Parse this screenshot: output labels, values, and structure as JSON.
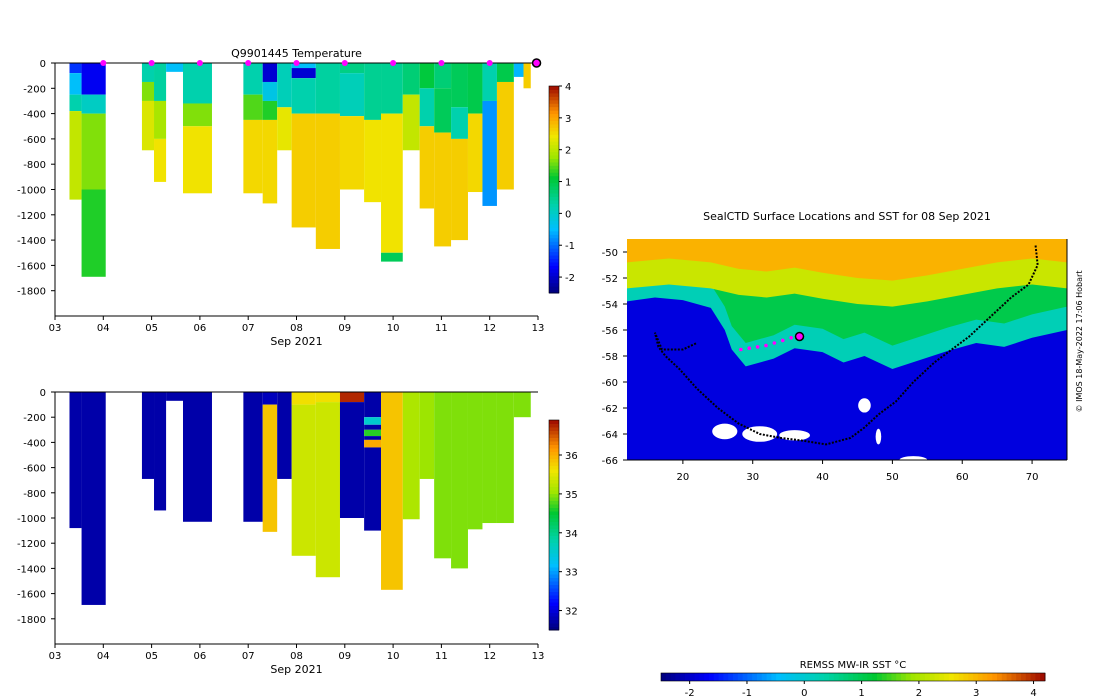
{
  "colors": {
    "axis": "#000000",
    "marker": "#ff00ff",
    "land": "#ffffff",
    "track": "#000000"
  },
  "chart_data": [
    {
      "id": "temperature",
      "type": "heatmap",
      "title": "Q9901445  Temperature",
      "xlabel": "Sep 2021",
      "ylabel": "",
      "xlim": [
        3,
        13
      ],
      "ylim": [
        -2000,
        0
      ],
      "xticks": [
        "03",
        "04",
        "05",
        "06",
        "07",
        "08",
        "09",
        "10",
        "11",
        "12",
        "13"
      ],
      "yticks": [
        "0",
        "-200",
        "-400",
        "-600",
        "-800",
        "-1000",
        "-1200",
        "-1400",
        "-1600",
        "-1800"
      ],
      "colorbar": {
        "range": [
          -2.5,
          4
        ],
        "ticks": [
          "4",
          "3",
          "2",
          "1",
          "0",
          "-1",
          "-2"
        ]
      },
      "markers_x": [
        4.0,
        5.0,
        6.0,
        7.0,
        8.0,
        9.0,
        10.0,
        11.0,
        12.0
      ],
      "profiles": [
        {
          "x0": 3.3,
          "x1": 3.55,
          "bottom": 1080,
          "layers": [
            [
              0,
              80,
              -1.4
            ],
            [
              80,
              250,
              -0.5
            ],
            [
              250,
              380,
              0.2
            ],
            [
              380,
              1080,
              2.0
            ]
          ]
        },
        {
          "x0": 3.55,
          "x1": 4.05,
          "bottom": 1690,
          "layers": [
            [
              0,
              250,
              -1.8
            ],
            [
              250,
              400,
              0.0
            ],
            [
              400,
              1000,
              1.6
            ],
            [
              1000,
              1690,
              1.2
            ]
          ]
        },
        {
          "x0": 4.8,
          "x1": 5.05,
          "bottom": 690,
          "layers": [
            [
              0,
              150,
              0.2
            ],
            [
              150,
              300,
              1.6
            ],
            [
              300,
              690,
              2.2
            ]
          ]
        },
        {
          "x0": 5.05,
          "x1": 5.3,
          "bottom": 940,
          "layers": [
            [
              0,
              300,
              0.3
            ],
            [
              300,
              600,
              1.8
            ],
            [
              600,
              940,
              2.4
            ]
          ]
        },
        {
          "x0": 5.3,
          "x1": 5.65,
          "bottom": 70,
          "layers": [
            [
              0,
              70,
              -0.5
            ]
          ]
        },
        {
          "x0": 5.65,
          "x1": 6.25,
          "bottom": 1030,
          "layers": [
            [
              0,
              320,
              0.2
            ],
            [
              320,
              500,
              1.6
            ],
            [
              500,
              1030,
              2.4
            ]
          ]
        },
        {
          "x0": 6.9,
          "x1": 7.3,
          "bottom": 1030,
          "layers": [
            [
              0,
              250,
              0.2
            ],
            [
              250,
              450,
              1.4
            ],
            [
              450,
              1030,
              2.5
            ]
          ]
        },
        {
          "x0": 7.3,
          "x1": 7.6,
          "bottom": 1110,
          "layers": [
            [
              0,
              150,
              -2.0
            ],
            [
              150,
              300,
              -0.3
            ],
            [
              300,
              450,
              1.2
            ],
            [
              450,
              1110,
              2.5
            ]
          ]
        },
        {
          "x0": 7.6,
          "x1": 7.9,
          "bottom": 690,
          "layers": [
            [
              0,
              350,
              0.1
            ],
            [
              350,
              690,
              2.3
            ]
          ]
        },
        {
          "x0": 7.9,
          "x1": 8.4,
          "bottom": 1300,
          "layers": [
            [
              0,
              40,
              -0.5
            ],
            [
              40,
              120,
              -2.0
            ],
            [
              120,
              400,
              0.2
            ],
            [
              400,
              1300,
              2.6
            ]
          ]
        },
        {
          "x0": 8.4,
          "x1": 8.9,
          "bottom": 1470,
          "layers": [
            [
              0,
              400,
              0.3
            ],
            [
              400,
              1470,
              2.6
            ]
          ]
        },
        {
          "x0": 8.9,
          "x1": 9.4,
          "bottom": 1000,
          "layers": [
            [
              0,
              80,
              0.5
            ],
            [
              80,
              420,
              0.1
            ],
            [
              420,
              1000,
              2.5
            ]
          ]
        },
        {
          "x0": 9.4,
          "x1": 9.75,
          "bottom": 1100,
          "layers": [
            [
              0,
              450,
              0.4
            ],
            [
              450,
              1100,
              2.4
            ]
          ]
        },
        {
          "x0": 9.75,
          "x1": 10.2,
          "bottom": 1570,
          "layers": [
            [
              0,
              400,
              0.4
            ],
            [
              400,
              1500,
              2.4
            ],
            [
              1500,
              1570,
              0.8
            ]
          ]
        },
        {
          "x0": 10.2,
          "x1": 10.55,
          "bottom": 690,
          "layers": [
            [
              0,
              250,
              0.6
            ],
            [
              250,
              690,
              2.0
            ]
          ]
        },
        {
          "x0": 10.55,
          "x1": 10.85,
          "bottom": 1150,
          "layers": [
            [
              0,
              200,
              1.0
            ],
            [
              200,
              500,
              0.2
            ],
            [
              500,
              1150,
              2.6
            ]
          ]
        },
        {
          "x0": 10.85,
          "x1": 11.2,
          "bottom": 1450,
          "layers": [
            [
              0,
              200,
              0.6
            ],
            [
              200,
              550,
              0.8
            ],
            [
              550,
              1450,
              2.6
            ]
          ]
        },
        {
          "x0": 11.2,
          "x1": 11.55,
          "bottom": 1400,
          "layers": [
            [
              0,
              350,
              0.8
            ],
            [
              350,
              600,
              0.2
            ],
            [
              600,
              1400,
              2.6
            ]
          ]
        },
        {
          "x0": 11.55,
          "x1": 11.85,
          "bottom": 1020,
          "layers": [
            [
              0,
              400,
              0.9
            ],
            [
              400,
              1020,
              2.5
            ]
          ]
        },
        {
          "x0": 11.85,
          "x1": 12.15,
          "bottom": 1130,
          "layers": [
            [
              0,
              300,
              0.2
            ],
            [
              300,
              1130,
              -0.8
            ]
          ]
        },
        {
          "x0": 12.15,
          "x1": 12.5,
          "bottom": 1000,
          "layers": [
            [
              0,
              150,
              0.9
            ],
            [
              150,
              1000,
              2.6
            ]
          ]
        },
        {
          "x0": 12.5,
          "x1": 12.7,
          "bottom": 110,
          "layers": [
            [
              0,
              110,
              -0.6
            ]
          ]
        },
        {
          "x0": 12.7,
          "x1": 12.85,
          "bottom": 200,
          "layers": [
            [
              0,
              200,
              2.6
            ]
          ]
        }
      ]
    },
    {
      "id": "salinity",
      "type": "heatmap",
      "title": "",
      "xlabel": "Sep 2021",
      "ylabel": "",
      "xlim": [
        3,
        13
      ],
      "ylim": [
        -2000,
        0
      ],
      "xticks": [
        "03",
        "04",
        "05",
        "06",
        "07",
        "08",
        "09",
        "10",
        "11",
        "12",
        "13"
      ],
      "yticks": [
        "0",
        "-200",
        "-400",
        "-600",
        "-800",
        "-1000",
        "-1200",
        "-1400",
        "-1600",
        "-1800"
      ],
      "colorbar": {
        "range": [
          31.5,
          36.9
        ],
        "ticks": [
          "36",
          "35",
          "34",
          "33",
          "32"
        ]
      },
      "profiles": [
        {
          "x0": 3.3,
          "x1": 3.55,
          "bottom": 1080,
          "layers": [
            [
              0,
              1080,
              31.7
            ]
          ]
        },
        {
          "x0": 3.55,
          "x1": 4.05,
          "bottom": 1690,
          "layers": [
            [
              0,
              1690,
              31.7
            ]
          ]
        },
        {
          "x0": 4.8,
          "x1": 5.05,
          "bottom": 690,
          "layers": [
            [
              0,
              690,
              31.7
            ]
          ]
        },
        {
          "x0": 5.05,
          "x1": 5.3,
          "bottom": 940,
          "layers": [
            [
              0,
              940,
              31.7
            ]
          ]
        },
        {
          "x0": 5.3,
          "x1": 5.65,
          "bottom": 70,
          "layers": [
            [
              0,
              70,
              31.7
            ]
          ]
        },
        {
          "x0": 5.65,
          "x1": 6.25,
          "bottom": 1030,
          "layers": [
            [
              0,
              1030,
              31.7
            ]
          ]
        },
        {
          "x0": 6.9,
          "x1": 7.3,
          "bottom": 1030,
          "layers": [
            [
              0,
              1030,
              31.7
            ]
          ]
        },
        {
          "x0": 7.3,
          "x1": 7.6,
          "bottom": 1110,
          "layers": [
            [
              0,
              100,
              31.8
            ],
            [
              100,
              1110,
              35.8
            ]
          ]
        },
        {
          "x0": 7.6,
          "x1": 7.9,
          "bottom": 690,
          "layers": [
            [
              0,
              690,
              31.7
            ]
          ]
        },
        {
          "x0": 7.9,
          "x1": 8.4,
          "bottom": 1300,
          "layers": [
            [
              0,
              100,
              35.6
            ],
            [
              100,
              1300,
              35.3
            ]
          ]
        },
        {
          "x0": 8.4,
          "x1": 8.9,
          "bottom": 1470,
          "layers": [
            [
              0,
              80,
              35.6
            ],
            [
              80,
              1470,
              35.3
            ]
          ]
        },
        {
          "x0": 8.9,
          "x1": 9.4,
          "bottom": 1000,
          "layers": [
            [
              0,
              80,
              36.7
            ],
            [
              80,
              1000,
              31.7
            ]
          ]
        },
        {
          "x0": 9.4,
          "x1": 9.75,
          "bottom": 1100,
          "layers": [
            [
              0,
              200,
              31.7
            ],
            [
              200,
              260,
              33.5
            ],
            [
              260,
              300,
              31.7
            ],
            [
              300,
              350,
              34.6
            ],
            [
              350,
              380,
              31.7
            ],
            [
              380,
              440,
              36.0
            ],
            [
              440,
              1100,
              31.7
            ]
          ]
        },
        {
          "x0": 9.75,
          "x1": 10.2,
          "bottom": 1570,
          "layers": [
            [
              0,
              1570,
              35.8
            ]
          ]
        },
        {
          "x0": 10.2,
          "x1": 10.55,
          "bottom": 1010,
          "layers": [
            [
              0,
              1010,
              35.1
            ]
          ]
        },
        {
          "x0": 10.55,
          "x1": 10.85,
          "bottom": 690,
          "layers": [
            [
              0,
              690,
              35.0
            ]
          ]
        },
        {
          "x0": 10.85,
          "x1": 11.2,
          "bottom": 1320,
          "layers": [
            [
              0,
              1320,
              34.9
            ]
          ]
        },
        {
          "x0": 11.2,
          "x1": 11.55,
          "bottom": 1400,
          "layers": [
            [
              0,
              1400,
              34.9
            ]
          ]
        },
        {
          "x0": 11.55,
          "x1": 11.85,
          "bottom": 1090,
          "layers": [
            [
              0,
              1090,
              34.9
            ]
          ]
        },
        {
          "x0": 11.85,
          "x1": 12.15,
          "bottom": 1040,
          "layers": [
            [
              0,
              1040,
              34.9
            ]
          ]
        },
        {
          "x0": 12.15,
          "x1": 12.5,
          "bottom": 1040,
          "layers": [
            [
              0,
              1040,
              34.9
            ]
          ]
        },
        {
          "x0": 12.5,
          "x1": 12.85,
          "bottom": 200,
          "layers": [
            [
              0,
              200,
              34.9
            ]
          ]
        }
      ]
    },
    {
      "id": "sst_map",
      "type": "heatmap",
      "title": "SealCTD Surface Locations and SST for 08 Sep 2021",
      "xlabel": "",
      "ylabel": "",
      "xlim": [
        12,
        75
      ],
      "ylim": [
        -66,
        -49
      ],
      "xticks": [
        "20",
        "30",
        "40",
        "50",
        "60",
        "70"
      ],
      "yticks": [
        "-50",
        "-52",
        "-54",
        "-56",
        "-58",
        "-60",
        "-62",
        "-64",
        "-66"
      ],
      "colorbar": {
        "label": "REMSS MW-IR SST °C",
        "range": [
          -2.5,
          4.2
        ],
        "ticks": [
          "-2",
          "-1",
          "0",
          "1",
          "2",
          "3",
          "4"
        ]
      },
      "credit": "© IMOS 18-May-2022 17:06 Hobart",
      "track_points": [
        [
          70.5,
          -49.5
        ],
        [
          70.8,
          -51
        ],
        [
          69.5,
          -52.5
        ],
        [
          67,
          -53.5
        ],
        [
          64,
          -55
        ],
        [
          61,
          -56.5
        ],
        [
          58.5,
          -57.5
        ],
        [
          56,
          -58.5
        ],
        [
          53,
          -60
        ],
        [
          50.5,
          -61.5
        ],
        [
          48,
          -62.5
        ],
        [
          46,
          -63.5
        ],
        [
          44,
          -64.3
        ],
        [
          40.5,
          -64.8
        ],
        [
          37,
          -64.5
        ],
        [
          34,
          -64.3
        ],
        [
          31,
          -64
        ],
        [
          28,
          -63.2
        ],
        [
          25,
          -62
        ],
        [
          22,
          -60.5
        ],
        [
          19.5,
          -59
        ],
        [
          17.5,
          -58
        ],
        [
          16.5,
          -57.3
        ],
        [
          16,
          -56.2
        ],
        [
          17,
          -57.5
        ],
        [
          20,
          -57.5
        ],
        [
          22,
          -57
        ]
      ],
      "recent_points": [
        [
          28.3,
          -57.5
        ],
        [
          29.5,
          -57.4
        ],
        [
          30.7,
          -57.3
        ],
        [
          31.9,
          -57.2
        ],
        [
          33.1,
          -57.0
        ],
        [
          34.3,
          -56.8
        ],
        [
          35.5,
          -56.6
        ]
      ],
      "current_position": [
        36.7,
        -56.5
      ],
      "sst_fronts": [
        [
          12,
          -52.8
        ],
        [
          18,
          -52.5
        ],
        [
          24,
          -52.8
        ],
        [
          28,
          -53.3
        ],
        [
          32,
          -53.5
        ],
        [
          36,
          -53.2
        ],
        [
          40,
          -53.6
        ],
        [
          45,
          -54.0
        ],
        [
          50,
          -54.2
        ],
        [
          55,
          -53.8
        ],
        [
          60,
          -53.3
        ],
        [
          65,
          -52.8
        ],
        [
          70,
          -52.5
        ],
        [
          75,
          -52.8
        ]
      ],
      "ice_edge": [
        [
          12,
          -53.8
        ],
        [
          16,
          -53.5
        ],
        [
          20,
          -53.7
        ],
        [
          24,
          -54.3
        ],
        [
          26,
          -56
        ],
        [
          27,
          -57.5
        ],
        [
          29,
          -58.8
        ],
        [
          33,
          -58.2
        ],
        [
          36,
          -57.4
        ],
        [
          40,
          -57.7
        ],
        [
          43,
          -58.5
        ],
        [
          46,
          -58.0
        ],
        [
          50,
          -59.0
        ],
        [
          54,
          -58.3
        ],
        [
          58,
          -57.6
        ],
        [
          62,
          -57.0
        ],
        [
          66,
          -57.3
        ],
        [
          70,
          -56.6
        ],
        [
          75,
          -56.0
        ]
      ]
    }
  ]
}
